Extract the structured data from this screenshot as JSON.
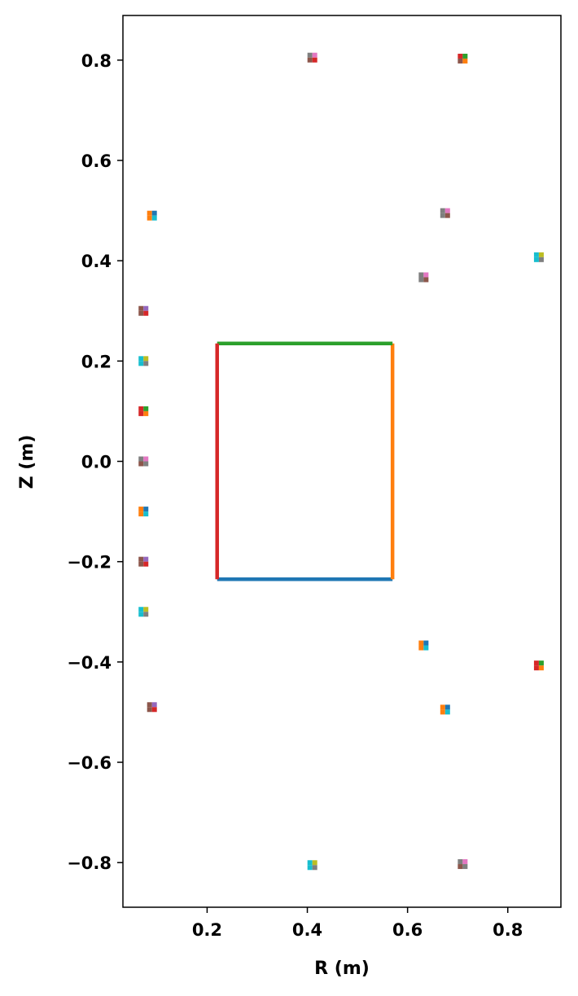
{
  "chart_data": {
    "type": "scatter",
    "title": "",
    "xlabel": "R (m)",
    "ylabel": "Z (m)",
    "xlim": [
      0.032,
      0.906
    ],
    "ylim": [
      -0.889,
      0.889
    ],
    "grid": false,
    "legend": "none",
    "xticks": [
      {
        "value": 0.2,
        "label": "0.2"
      },
      {
        "value": 0.4,
        "label": "0.4"
      },
      {
        "value": 0.6,
        "label": "0.6"
      },
      {
        "value": 0.8,
        "label": "0.8"
      }
    ],
    "yticks": [
      {
        "value": 0.8,
        "label": "0.8"
      },
      {
        "value": 0.6,
        "label": "0.6"
      },
      {
        "value": 0.4,
        "label": "0.4"
      },
      {
        "value": 0.2,
        "label": "0.2"
      },
      {
        "value": 0.0,
        "label": "0.0"
      },
      {
        "value": -0.2,
        "label": "−0.2"
      },
      {
        "value": -0.4,
        "label": "−0.4"
      },
      {
        "value": -0.6,
        "label": "−0.6"
      },
      {
        "value": -0.8,
        "label": "−0.8"
      }
    ],
    "series": [
      {
        "color": "#1f77b4",
        "points": [
          [
            0.22,
            -0.235
          ],
          [
            0.57,
            -0.235
          ]
        ]
      },
      {
        "color": "#ff7f0e",
        "points": [
          [
            0.57,
            -0.235
          ],
          [
            0.57,
            0.235
          ]
        ]
      },
      {
        "color": "#2ca02c",
        "points": [
          [
            0.57,
            0.235
          ],
          [
            0.22,
            0.235
          ]
        ]
      },
      {
        "color": "#d62728",
        "points": [
          [
            0.22,
            0.235
          ],
          [
            0.22,
            -0.235
          ]
        ]
      }
    ],
    "markers": [
      {
        "r": 0.41,
        "z": 0.805,
        "colors": [
          "#7f7f7f",
          "#e377c2",
          "#8c564b",
          "#d62728"
        ]
      },
      {
        "r": 0.71,
        "z": 0.803,
        "colors": [
          "#d62728",
          "#2ca02c",
          "#8c564b",
          "#ff7f0e"
        ]
      },
      {
        "r": 0.09,
        "z": 0.49,
        "colors": [
          "#ff7f0e",
          "#1f77b4",
          "#ff7f0e",
          "#17becf"
        ]
      },
      {
        "r": 0.675,
        "z": 0.495,
        "colors": [
          "#7f7f7f",
          "#e377c2",
          "#7f7f7f",
          "#8c564b"
        ]
      },
      {
        "r": 0.862,
        "z": 0.407,
        "colors": [
          "#17becf",
          "#bcbd22",
          "#17becf",
          "#7f7f7f"
        ]
      },
      {
        "r": 0.632,
        "z": 0.367,
        "colors": [
          "#7f7f7f",
          "#e377c2",
          "#7f7f7f",
          "#8c564b"
        ]
      },
      {
        "r": 0.073,
        "z": 0.3,
        "colors": [
          "#8c564b",
          "#9467bd",
          "#8c564b",
          "#d62728"
        ]
      },
      {
        "r": 0.073,
        "z": 0.2,
        "colors": [
          "#17becf",
          "#bcbd22",
          "#17becf",
          "#7f7f7f"
        ]
      },
      {
        "r": 0.073,
        "z": 0.1,
        "colors": [
          "#d62728",
          "#2ca02c",
          "#d62728",
          "#ff7f0e"
        ]
      },
      {
        "r": 0.073,
        "z": 0.0,
        "colors": [
          "#7f7f7f",
          "#e377c2",
          "#8c564b",
          "#7f7f7f"
        ]
      },
      {
        "r": 0.073,
        "z": -0.1,
        "colors": [
          "#ff7f0e",
          "#1f77b4",
          "#ff7f0e",
          "#17becf"
        ]
      },
      {
        "r": 0.073,
        "z": -0.2,
        "colors": [
          "#8c564b",
          "#9467bd",
          "#8c564b",
          "#d62728"
        ]
      },
      {
        "r": 0.073,
        "z": -0.3,
        "colors": [
          "#17becf",
          "#bcbd22",
          "#17becf",
          "#7f7f7f"
        ]
      },
      {
        "r": 0.632,
        "z": -0.367,
        "colors": [
          "#ff7f0e",
          "#1f77b4",
          "#ff7f0e",
          "#17becf"
        ]
      },
      {
        "r": 0.862,
        "z": -0.407,
        "colors": [
          "#d62728",
          "#2ca02c",
          "#d62728",
          "#ff7f0e"
        ]
      },
      {
        "r": 0.09,
        "z": -0.49,
        "colors": [
          "#8c564b",
          "#9467bd",
          "#8c564b",
          "#d62728"
        ]
      },
      {
        "r": 0.675,
        "z": -0.495,
        "colors": [
          "#ff7f0e",
          "#1f77b4",
          "#ff7f0e",
          "#17becf"
        ]
      },
      {
        "r": 0.41,
        "z": -0.805,
        "colors": [
          "#17becf",
          "#bcbd22",
          "#17becf",
          "#7f7f7f"
        ]
      },
      {
        "r": 0.71,
        "z": -0.803,
        "colors": [
          "#7f7f7f",
          "#e377c2",
          "#8c564b",
          "#7f7f7f"
        ]
      }
    ]
  }
}
